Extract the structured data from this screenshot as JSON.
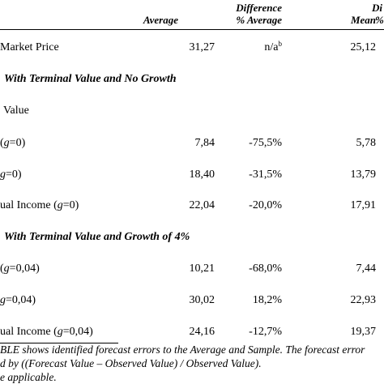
{
  "header": {
    "col1": "Average",
    "col2_line1": "Difference",
    "col2_line2": "% Average",
    "col3": "Mean",
    "col4_line1": "Di",
    "col4_line2": "%"
  },
  "rows": [
    {
      "label": "Market Price",
      "avg": "31,27",
      "diff": "n/a",
      "diff_sup": "b",
      "mean": "25,12"
    },
    {
      "section": "With Terminal Value and No Growth"
    },
    {
      "label": "Value"
    },
    {
      "label_pre": "(",
      "label_g": "g",
      "label_post": "=0)",
      "avg": "7,84",
      "diff": "-75,5%",
      "mean": "5,78"
    },
    {
      "label_g": "g",
      "label_post": "=0)",
      "avg": "18,40",
      "diff": "-31,5%",
      "mean": "13,79"
    },
    {
      "label_pre": "ual Income (",
      "label_g": "g",
      "label_post": "=0)",
      "avg": "22,04",
      "diff": "-20,0%",
      "mean": "17,91"
    },
    {
      "section": "With Terminal Value and Growth of 4%"
    },
    {
      "label_pre": "(",
      "label_g": "g",
      "label_post": "=0,04)",
      "avg": "10,21",
      "diff": "-68,0%",
      "mean": "7,44"
    },
    {
      "label_g": "g",
      "label_post": "=0,04)",
      "avg": "30,02",
      "diff": "18,2%",
      "mean": "22,93"
    },
    {
      "label_pre": "ual Income (",
      "label_g": "g",
      "label_post": "=0,04)",
      "avg": "24,16",
      "diff": "-12,7%",
      "mean": "19,37"
    }
  ],
  "notes": {
    "line1": "BLE shows identified  forecast errors to the Average and Sample. The forecast error",
    "line2": "d by ((Forecast Value – Observed Value) / Observed Value).",
    "line3": "e applicable."
  }
}
